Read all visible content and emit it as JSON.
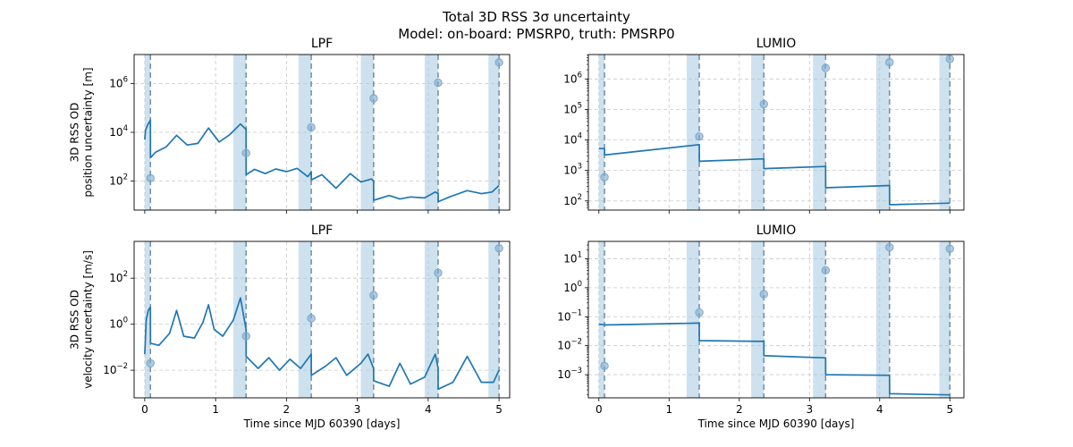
{
  "figure": {
    "title_line1": "Total 3D RSS 3σ uncertainty",
    "title_line2": "Model: on-board: PMSRP0, truth: PMSRP0"
  },
  "colors": {
    "line": "#1f77b4",
    "band": "#a6c8e0",
    "dashed": "#6d8fae",
    "grid": "#c8c8c8",
    "marker": "#7fa9cc"
  },
  "chart_data": [
    {
      "type": "line",
      "panel": "top-left",
      "title": "LPF",
      "xlabel": "",
      "ylabel_lines": [
        "3D RSS OD",
        "position uncertainty [m]"
      ],
      "yscale": "log",
      "xlim": [
        -0.15,
        5.15
      ],
      "ylim_log10": [
        0.8,
        7.2
      ],
      "xticks": [
        0,
        1,
        2,
        3,
        4,
        5
      ],
      "xtick_labels_shown": false,
      "yticks": [
        {
          "exp": "2",
          "v": 2
        },
        {
          "exp": "4",
          "v": 4
        },
        {
          "exp": "6",
          "v": 6
        }
      ],
      "minor_yticks": false,
      "grid": true,
      "bands": [
        [
          0.0,
          0.08
        ],
        [
          1.25,
          1.43
        ],
        [
          2.17,
          2.35
        ],
        [
          3.05,
          3.23
        ],
        [
          3.95,
          4.14
        ],
        [
          4.85,
          5.0
        ]
      ],
      "dashed_lines": [
        0.08,
        1.43,
        2.35,
        3.23,
        4.14,
        5.0
      ],
      "markers": [
        {
          "x": 0.08,
          "y": 130
        },
        {
          "x": 1.43,
          "y": 1400
        },
        {
          "x": 2.35,
          "y": 16000
        },
        {
          "x": 3.23,
          "y": 250000
        },
        {
          "x": 4.14,
          "y": 1100000
        },
        {
          "x": 5.0,
          "y": 7500000
        }
      ],
      "series": [
        {
          "x": [
            0,
            0.01,
            0.04,
            0.07,
            0.08,
            0.081,
            0.15,
            0.3,
            0.45,
            0.6,
            0.75,
            0.9,
            1.05,
            1.2,
            1.35,
            1.43,
            1.431,
            1.55,
            1.7,
            1.85,
            2.0,
            2.15,
            2.3,
            2.35,
            2.351,
            2.5,
            2.7,
            2.9,
            3.05,
            3.2,
            3.23,
            3.231,
            3.45,
            3.6,
            3.75,
            3.95,
            4.1,
            4.14,
            4.141,
            4.3,
            4.55,
            4.75,
            4.9,
            5.0
          ],
          "y": [
            5000,
            12000,
            20000,
            28000,
            32000,
            900,
            1500,
            2500,
            7500,
            3000,
            3500,
            15000,
            4000,
            8000,
            22000,
            13000,
            180,
            300,
            200,
            310,
            240,
            330,
            150,
            230,
            110,
            180,
            50,
            200,
            90,
            120,
            100,
            16,
            25,
            18,
            22,
            20,
            35,
            30,
            14,
            22,
            40,
            30,
            35,
            65
          ]
        }
      ]
    },
    {
      "type": "line",
      "panel": "top-right",
      "title": "LUMIO",
      "xlabel": "",
      "ylabel_lines": [],
      "yscale": "log",
      "xlim": [
        -0.15,
        5.2
      ],
      "ylim_log10": [
        1.7,
        6.8
      ],
      "xticks": [
        0,
        1,
        2,
        3,
        4,
        5
      ],
      "xtick_labels_shown": false,
      "yticks": [
        {
          "exp": "2",
          "v": 2
        },
        {
          "exp": "3",
          "v": 3
        },
        {
          "exp": "4",
          "v": 4
        },
        {
          "exp": "5",
          "v": 5
        },
        {
          "exp": "6",
          "v": 6
        }
      ],
      "minor_yticks": true,
      "grid": true,
      "bands": [
        [
          0.0,
          0.08
        ],
        [
          1.25,
          1.43
        ],
        [
          2.17,
          2.35
        ],
        [
          3.05,
          3.23
        ],
        [
          3.95,
          4.14
        ],
        [
          4.85,
          5.0
        ]
      ],
      "dashed_lines": [
        0.08,
        1.43,
        2.35,
        3.23,
        4.14,
        5.0
      ],
      "markers": [
        {
          "x": 0.08,
          "y": 600
        },
        {
          "x": 1.43,
          "y": 13000
        },
        {
          "x": 2.35,
          "y": 150000
        },
        {
          "x": 3.23,
          "y": 2300000
        },
        {
          "x": 4.14,
          "y": 3500000
        },
        {
          "x": 5.0,
          "y": 4500000
        }
      ],
      "series": [
        {
          "x": [
            0,
            0.08,
            0.081,
            1.43,
            1.431,
            2.35,
            2.351,
            3.23,
            3.231,
            4.14,
            4.141,
            5.0
          ],
          "y": [
            5200,
            5200,
            3200,
            7000,
            2000,
            2400,
            1150,
            1350,
            270,
            320,
            75,
            85
          ]
        }
      ]
    },
    {
      "type": "line",
      "panel": "bottom-left",
      "title": "LPF",
      "xlabel": "Time since MJD 60390 [days]",
      "ylabel_lines": [
        "3D RSS OD",
        "velocity uncertainty [m/s]"
      ],
      "yscale": "log",
      "xlim": [
        -0.15,
        5.15
      ],
      "ylim_log10": [
        -3.2,
        3.6
      ],
      "xticks": [
        0,
        1,
        2,
        3,
        4,
        5
      ],
      "xtick_labels_shown": true,
      "yticks": [
        {
          "exp": "−2",
          "v": -2
        },
        {
          "exp": "0",
          "v": 0
        },
        {
          "exp": "2",
          "v": 2
        }
      ],
      "minor_yticks": false,
      "grid": true,
      "bands": [
        [
          0.0,
          0.08
        ],
        [
          1.25,
          1.43
        ],
        [
          2.17,
          2.35
        ],
        [
          3.05,
          3.23
        ],
        [
          3.95,
          4.14
        ],
        [
          4.85,
          5.0
        ]
      ],
      "dashed_lines": [
        0.08,
        1.43,
        2.35,
        3.23,
        4.14,
        5.0
      ],
      "markers": [
        {
          "x": 0.08,
          "y": 0.02
        },
        {
          "x": 1.43,
          "y": 0.3
        },
        {
          "x": 2.35,
          "y": 1.8
        },
        {
          "x": 3.23,
          "y": 18
        },
        {
          "x": 4.14,
          "y": 170
        },
        {
          "x": 5.0,
          "y": 2000
        }
      ],
      "series": [
        {
          "x": [
            0,
            0.02,
            0.05,
            0.08,
            0.081,
            0.2,
            0.35,
            0.45,
            0.55,
            0.7,
            0.82,
            0.9,
            0.98,
            1.1,
            1.25,
            1.35,
            1.43,
            1.431,
            1.6,
            1.75,
            1.9,
            2.05,
            2.2,
            2.35,
            2.351,
            2.55,
            2.7,
            2.85,
            3.05,
            3.15,
            3.23,
            3.231,
            3.45,
            3.6,
            3.75,
            3.95,
            4.1,
            4.14,
            4.141,
            4.35,
            4.55,
            4.75,
            4.92,
            5.0
          ],
          "y": [
            0.05,
            1.5,
            4.0,
            5.5,
            0.15,
            0.12,
            0.4,
            4.0,
            0.3,
            0.25,
            1.2,
            7.0,
            0.6,
            0.3,
            1.5,
            14.0,
            0.6,
            0.04,
            0.012,
            0.035,
            0.01,
            0.03,
            0.012,
            0.05,
            0.006,
            0.015,
            0.035,
            0.006,
            0.02,
            0.05,
            0.012,
            0.0035,
            0.002,
            0.02,
            0.0025,
            0.005,
            0.05,
            0.012,
            0.0015,
            0.003,
            0.04,
            0.003,
            0.003,
            0.01
          ]
        }
      ]
    },
    {
      "type": "line",
      "panel": "bottom-right",
      "title": "LUMIO",
      "xlabel": "Time since MJD 60390 [days]",
      "ylabel_lines": [],
      "yscale": "log",
      "xlim": [
        -0.15,
        5.2
      ],
      "ylim_log10": [
        -3.8,
        1.6
      ],
      "xticks": [
        0,
        1,
        2,
        3,
        4,
        5
      ],
      "xtick_labels_shown": true,
      "yticks": [
        {
          "exp": "−3",
          "v": -3
        },
        {
          "exp": "−2",
          "v": -2
        },
        {
          "exp": "−1",
          "v": -1
        },
        {
          "exp": "0",
          "v": 0
        },
        {
          "exp": "1",
          "v": 1
        }
      ],
      "minor_yticks": true,
      "grid": true,
      "bands": [
        [
          0.0,
          0.08
        ],
        [
          1.25,
          1.43
        ],
        [
          2.17,
          2.35
        ],
        [
          3.05,
          3.23
        ],
        [
          3.95,
          4.14
        ],
        [
          4.85,
          5.0
        ]
      ],
      "dashed_lines": [
        0.08,
        1.43,
        2.35,
        3.23,
        4.14,
        5.0
      ],
      "markers": [
        {
          "x": 0.08,
          "y": 0.002
        },
        {
          "x": 1.43,
          "y": 0.14
        },
        {
          "x": 2.35,
          "y": 0.6
        },
        {
          "x": 3.23,
          "y": 4.0
        },
        {
          "x": 4.14,
          "y": 25
        },
        {
          "x": 5.0,
          "y": 22
        }
      ],
      "series": [
        {
          "x": [
            0,
            0.08,
            0.081,
            1.43,
            1.431,
            2.35,
            2.351,
            3.23,
            3.231,
            4.14,
            4.141,
            5.0
          ],
          "y": [
            0.055,
            0.053,
            0.052,
            0.06,
            0.015,
            0.014,
            0.0045,
            0.0038,
            0.001,
            0.00095,
            0.00022,
            0.0002
          ]
        }
      ]
    }
  ]
}
